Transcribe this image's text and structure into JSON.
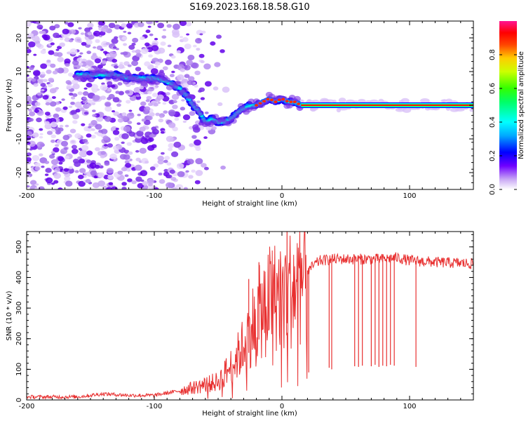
{
  "title": "S169.2023.168.18.58.G10",
  "chart_data": [
    {
      "type": "heatmap",
      "xlabel": "Height of straight line (km)",
      "ylabel": "Frequency (Hz)",
      "xlim": [
        -200,
        150
      ],
      "ylim": [
        -25,
        25
      ],
      "xticks": [
        -200,
        -100,
        0,
        100
      ],
      "yticks": [
        -20,
        -10,
        0,
        10,
        20
      ],
      "colorbar": {
        "label": "Normalized spectral amplitude",
        "range": [
          0,
          1
        ],
        "ticks": [
          "0.0",
          "0.2",
          "0.4",
          "0.6",
          "0.8"
        ],
        "colormap": "rainbow"
      },
      "ridge": {
        "x": [
          -160,
          -150,
          -140,
          -130,
          -120,
          -110,
          -100,
          -90,
          -85,
          -80,
          -75,
          -70,
          -65,
          -60,
          -55,
          -50,
          -45,
          -40,
          -35,
          -30,
          -25,
          -20,
          -15,
          -10,
          -5,
          0,
          5,
          10,
          15,
          150
        ],
        "y": [
          9,
          9,
          9,
          9,
          8,
          8,
          8,
          7,
          6,
          5,
          3,
          0,
          -2,
          -5,
          -4,
          -5,
          -5,
          -4,
          -2,
          -1,
          0,
          0,
          1,
          2,
          1,
          2,
          1,
          1,
          0,
          0
        ]
      }
    },
    {
      "type": "line",
      "xlabel": "Height of straight line (km)",
      "ylabel": "SNR (10 * v/v)",
      "xlim": [
        -200,
        150
      ],
      "ylim": [
        0,
        550
      ],
      "xticks": [
        -200,
        -100,
        0,
        100
      ],
      "yticks": [
        0,
        100,
        200,
        300,
        400,
        500
      ],
      "color": "#e83030",
      "envelope": {
        "x": [
          -200,
          -160,
          -140,
          -120,
          -100,
          -80,
          -70,
          -60,
          -50,
          -40,
          -35,
          -30,
          -25,
          -20,
          -15,
          -10,
          -5,
          0,
          5,
          10,
          15,
          20,
          25,
          30,
          40,
          60,
          80,
          90,
          100,
          120,
          150
        ],
        "y": [
          10,
          10,
          20,
          15,
          15,
          30,
          40,
          50,
          60,
          110,
          140,
          180,
          230,
          270,
          300,
          330,
          340,
          350,
          360,
          370,
          390,
          420,
          440,
          455,
          460,
          460,
          460,
          465,
          455,
          450,
          445
        ]
      },
      "dips": [
        {
          "x": 21,
          "y": 90
        },
        {
          "x": 37,
          "y": 105
        },
        {
          "x": 39,
          "y": 100
        },
        {
          "x": 57,
          "y": 110
        },
        {
          "x": 60,
          "y": 108
        },
        {
          "x": 63,
          "y": 112
        },
        {
          "x": 70,
          "y": 110
        },
        {
          "x": 73,
          "y": 115
        },
        {
          "x": 76,
          "y": 108
        },
        {
          "x": 79,
          "y": 112
        },
        {
          "x": 82,
          "y": 110
        },
        {
          "x": 85,
          "y": 115
        },
        {
          "x": 88,
          "y": 112
        },
        {
          "x": 105,
          "y": 108
        }
      ],
      "spikes": [
        {
          "x": 4,
          "y": 555
        },
        {
          "x": -18,
          "y": 450
        },
        {
          "x": -26,
          "y": 395
        }
      ]
    }
  ]
}
